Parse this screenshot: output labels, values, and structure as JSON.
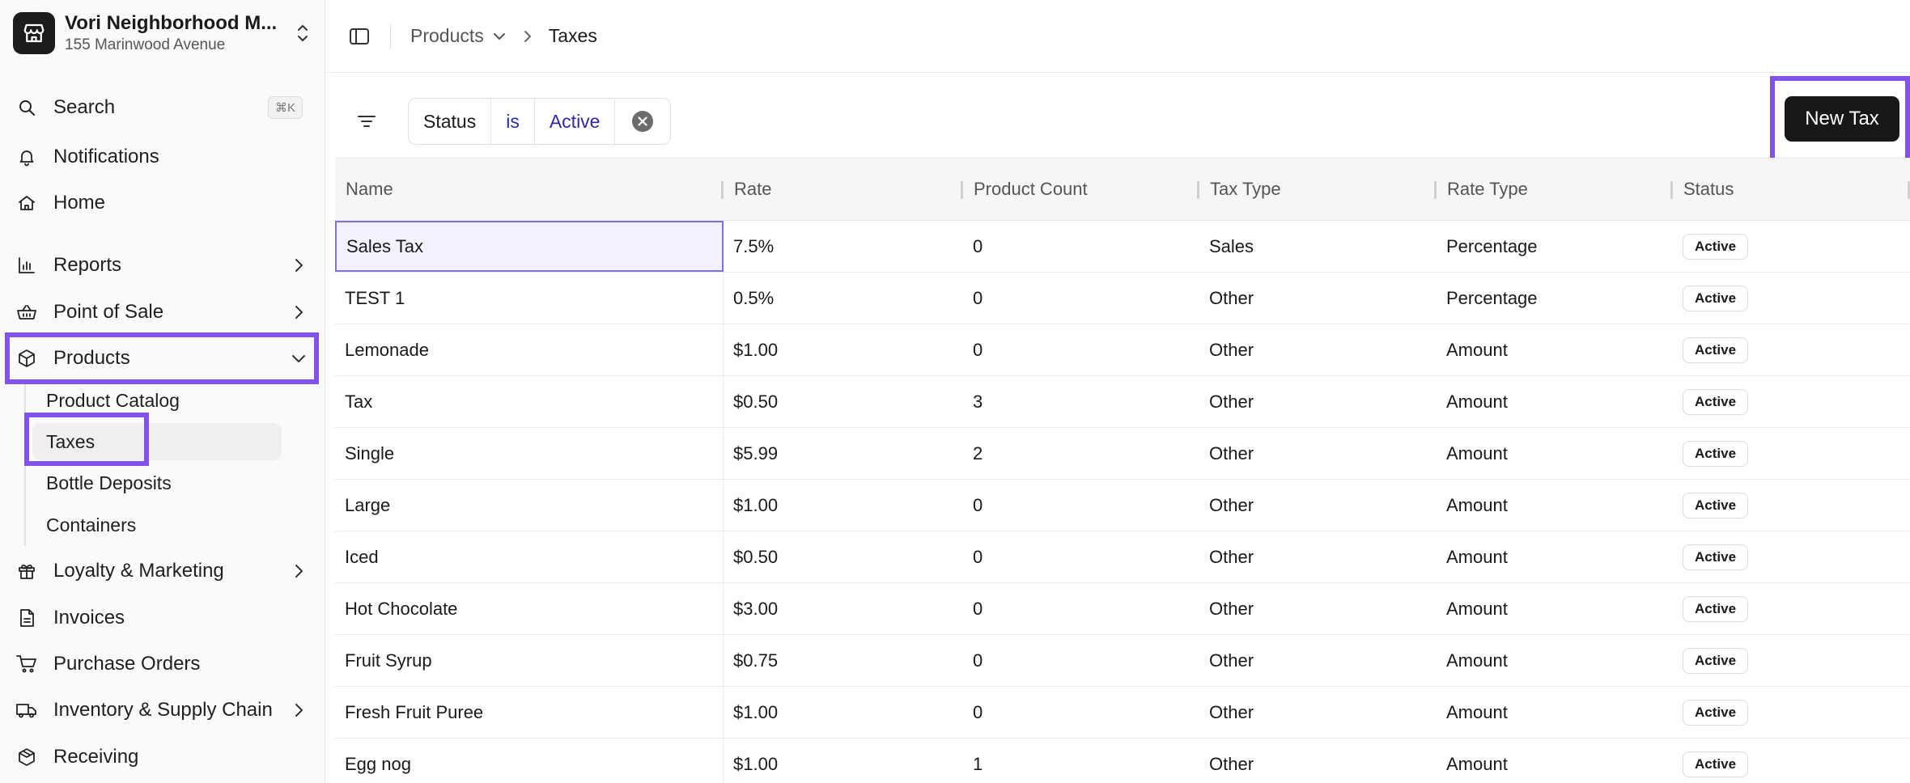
{
  "store": {
    "name": "Vori Neighborhood M...",
    "address": "155 Marinwood Avenue"
  },
  "sidebar": {
    "search": {
      "label": "Search",
      "shortcut": "⌘K"
    },
    "items": [
      {
        "label": "Notifications",
        "icon": "bell-icon"
      },
      {
        "label": "Home",
        "icon": "home-icon"
      },
      {
        "label": "Reports",
        "icon": "bar-chart-icon"
      },
      {
        "label": "Point of Sale",
        "icon": "basket-icon"
      },
      {
        "label": "Products",
        "icon": "box-icon"
      },
      {
        "label": "Loyalty & Marketing",
        "icon": "gift-icon"
      },
      {
        "label": "Invoices",
        "icon": "document-icon"
      },
      {
        "label": "Purchase Orders",
        "icon": "cart-icon"
      },
      {
        "label": "Inventory & Supply Chain",
        "icon": "truck-icon"
      },
      {
        "label": "Receiving",
        "icon": "package-icon"
      }
    ],
    "products_sub": [
      "Product Catalog",
      "Taxes",
      "Bottle Deposits",
      "Containers"
    ]
  },
  "breadcrumb": {
    "parent": "Products",
    "current": "Taxes"
  },
  "filter": {
    "field": "Status",
    "operator": "is",
    "value": "Active"
  },
  "actions": {
    "new_label": "New Tax"
  },
  "table": {
    "columns": [
      "Name",
      "Rate",
      "Product Count",
      "Tax Type",
      "Rate Type",
      "Status"
    ],
    "rows": [
      [
        "Sales Tax",
        "7.5%",
        "0",
        "Sales",
        "Percentage",
        "Active"
      ],
      [
        "TEST 1",
        "0.5%",
        "0",
        "Other",
        "Percentage",
        "Active"
      ],
      [
        "Lemonade",
        "$1.00",
        "0",
        "Other",
        "Amount",
        "Active"
      ],
      [
        "Tax",
        "$0.50",
        "3",
        "Other",
        "Amount",
        "Active"
      ],
      [
        "Single",
        "$5.99",
        "2",
        "Other",
        "Amount",
        "Active"
      ],
      [
        "Large",
        "$1.00",
        "0",
        "Other",
        "Amount",
        "Active"
      ],
      [
        "Iced",
        "$0.50",
        "0",
        "Other",
        "Amount",
        "Active"
      ],
      [
        "Hot Chocolate",
        "$3.00",
        "0",
        "Other",
        "Amount",
        "Active"
      ],
      [
        "Fruit Syrup",
        "$0.75",
        "0",
        "Other",
        "Amount",
        "Active"
      ],
      [
        "Fresh Fruit Puree",
        "$1.00",
        "0",
        "Other",
        "Amount",
        "Active"
      ],
      [
        "Egg nog",
        "$1.00",
        "1",
        "Other",
        "Amount",
        "Active"
      ]
    ]
  },
  "colors": {
    "highlight": "#8253ea",
    "primary_button": "#181818",
    "filter_value": "#2d2aa0"
  }
}
